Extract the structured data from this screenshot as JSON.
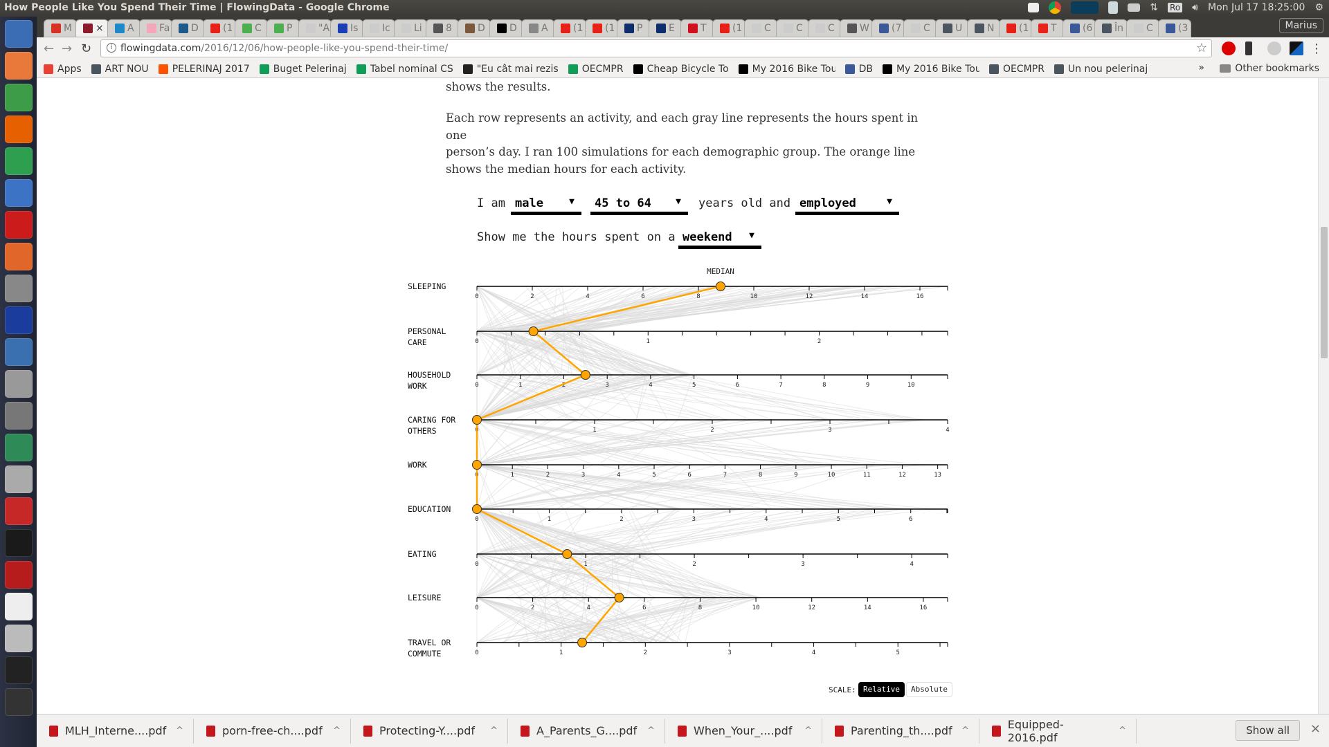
{
  "window": {
    "title": "How People Like You Spend Their Time | FlowingData - Google Chrome"
  },
  "system_tray": {
    "clock": "Mon Jul 17 18:25:00",
    "keyboard": "Ro",
    "user": "Marius",
    "icons": [
      "dropbox-icon",
      "chrome-icon",
      "system-monitor-icon",
      "notes-icon",
      "printer-icon",
      "network-icon",
      "keyboard-layout-icon",
      "volume-icon",
      "clock",
      "power-icon"
    ]
  },
  "tabs": [
    {
      "text": "M",
      "color": "#d93025"
    },
    {
      "text": "×",
      "color": "#8b1a2b",
      "active": true
    },
    {
      "text": "A",
      "color": "#1e88c8"
    },
    {
      "text": "Fa",
      "color": "#f2a8b8"
    },
    {
      "text": "D",
      "color": "#1d5a8a"
    },
    {
      "text": "(1",
      "color": "#e62117"
    },
    {
      "text": "C",
      "color": "#4caf50"
    },
    {
      "text": "P",
      "color": "#4caf50"
    },
    {
      "text": "\"A",
      "color": "#ccc"
    },
    {
      "text": "Is",
      "color": "#1a3fb5"
    },
    {
      "text": "Ic",
      "color": "#ccc"
    },
    {
      "text": "Li",
      "color": "#ccc"
    },
    {
      "text": "8",
      "color": "#555"
    },
    {
      "text": "D",
      "color": "#7a5a3a"
    },
    {
      "text": "D",
      "color": "#000"
    },
    {
      "text": "A",
      "color": "#888"
    },
    {
      "text": "(1",
      "color": "#e62117"
    },
    {
      "text": "(1",
      "color": "#e62117"
    },
    {
      "text": "P",
      "color": "#0c2e6b"
    },
    {
      "text": "E",
      "color": "#0c2e6b"
    },
    {
      "text": "T",
      "color": "#d0101c"
    },
    {
      "text": "(1",
      "color": "#e62117"
    },
    {
      "text": "C",
      "color": "#ccc"
    },
    {
      "text": "C",
      "color": "#ccc"
    },
    {
      "text": "C",
      "color": "#ccc"
    },
    {
      "text": "W",
      "color": "#555"
    },
    {
      "text": "(7",
      "color": "#3b5998"
    },
    {
      "text": "C",
      "color": "#ccc"
    },
    {
      "text": "U",
      "color": "#4a5560"
    },
    {
      "text": "N",
      "color": "#4a5560"
    },
    {
      "text": "(1",
      "color": "#e62117"
    },
    {
      "text": "T",
      "color": "#e8231a"
    },
    {
      "text": "(6",
      "color": "#3b5998"
    },
    {
      "text": "În",
      "color": "#4a5560"
    },
    {
      "text": "C",
      "color": "#ccc"
    },
    {
      "text": "(3",
      "color": "#3b5998"
    }
  ],
  "address_bar": {
    "domain": "flowingdata.com",
    "path": "/2016/12/06/how-people-like-you-spend-their-time/"
  },
  "bookmarks": [
    {
      "label": "Apps",
      "color": "#e94235"
    },
    {
      "label": "ART NOU",
      "color": "#4a5560"
    },
    {
      "label": "PELERINAJ 2017",
      "color": "#fc5200"
    },
    {
      "label": "Buget Pelerinaj",
      "color": "#0f9d58"
    },
    {
      "label": "Tabel nominal CS",
      "color": "#0f9d58"
    },
    {
      "label": "\"Eu cât mai rezis",
      "color": "#222"
    },
    {
      "label": "OECMPR",
      "color": "#0f9d58"
    },
    {
      "label": "Cheap Bicycle To",
      "color": "#000"
    },
    {
      "label": "My 2016 Bike Tou",
      "color": "#000"
    },
    {
      "label": "DB",
      "color": "#3b5998"
    },
    {
      "label": "My 2016 Bike Tou",
      "color": "#000"
    },
    {
      "label": "OECMPR",
      "color": "#4a5560"
    },
    {
      "label": "Un nou pelerinaj",
      "color": "#4a5560"
    }
  ],
  "bookmarks_more": "»",
  "other_bookmarks": "Other bookmarks",
  "launcher": [
    "#3b6db5",
    "#e8793a",
    "#3d9c48",
    "#e66000",
    "#2e9e4f",
    "#3c73c4",
    "#cc1b1b",
    "#e0662a",
    "#888",
    "#1a3c9c",
    "#3a6fb0",
    "#999",
    "#777",
    "#2e8b57",
    "#aaa",
    "#c62828",
    "#1a1a1a",
    "#b71c1c",
    "#eee",
    "#bbb",
    "#222",
    "#333"
  ],
  "article": {
    "p0": "shows the results.",
    "p1_lines": [
      "Each row represents an activity, and each gray line represents the hours spent in one",
      "person’s day. I ran 100 simulations for each demographic group. The orange line",
      "shows the median hours for each activity."
    ]
  },
  "controls": {
    "i_am": "I am",
    "sex": "male",
    "age": "45 to 64",
    "years_old_and": "years old and",
    "status": "employed",
    "show_me": "Show me the hours spent on a",
    "day": "weekend",
    "arrow": "▼"
  },
  "chart_data": {
    "type": "parallel-coordinates",
    "median_label": "MEDIAN",
    "median_color": "#ffa500",
    "line_color": "#d9d9d9",
    "rows": [
      {
        "label": [
          "SLEEPING"
        ],
        "max": 17.0,
        "ticks": [
          0,
          2,
          4,
          6,
          8,
          10,
          12,
          14,
          16
        ],
        "minor_step": 2,
        "median": 8.8
      },
      {
        "label": [
          "PERSONAL",
          "CARE"
        ],
        "max": 2.75,
        "ticks": [
          0,
          1,
          2
        ],
        "minor_step": 0.2,
        "median": 0.33
      },
      {
        "label": [
          "HOUSEHOLD",
          "WORK"
        ],
        "max": 10.84,
        "ticks": [
          0,
          1,
          2,
          3,
          4,
          5,
          6,
          7,
          8,
          9,
          10
        ],
        "minor_step": 1,
        "median": 2.5
      },
      {
        "label": [
          "CARING FOR",
          "OTHERS"
        ],
        "max": 4,
        "ticks": [
          0,
          1,
          2,
          3,
          4
        ],
        "minor_step": 0.5,
        "median": 0
      },
      {
        "label": [
          "WORK"
        ],
        "max": 13.28,
        "ticks": [
          0,
          1,
          2,
          3,
          4,
          5,
          6,
          7,
          8,
          9,
          10,
          11,
          12,
          13
        ],
        "minor_step": 1,
        "median": 0
      },
      {
        "label": [
          "EDUCATION"
        ],
        "max": 6.51,
        "ticks": [
          0,
          1,
          2,
          3,
          4,
          5,
          6
        ],
        "minor_step": 0.5,
        "median": 0
      },
      {
        "label": [
          "EATING"
        ],
        "max": 4.33,
        "ticks": [
          0,
          1,
          2,
          3,
          4
        ],
        "minor_step": 0.5,
        "median": 0.83
      },
      {
        "label": [
          "LEISURE"
        ],
        "max": 16.87,
        "ticks": [
          0,
          2,
          4,
          6,
          8,
          10,
          12,
          14,
          16
        ],
        "minor_step": 2,
        "median": 5.1
      },
      {
        "label": [
          "TRAVEL OR",
          "COMMUTE"
        ],
        "max": 5.59,
        "ticks": [
          0,
          1,
          2,
          3,
          4,
          5
        ],
        "minor_step": 0.5,
        "median": 1.25
      }
    ]
  },
  "scale": {
    "label": "SCALE:",
    "options": [
      "Relative",
      "Absolute"
    ],
    "selected": "Relative"
  },
  "downloads": [
    "MLH_Interne....pdf",
    "porn-free-ch....pdf",
    "Protecting-Y....pdf",
    "A_Parents_G....pdf",
    "When_Your_....pdf",
    "Parenting_th....pdf",
    "Equipped-2016.pdf"
  ],
  "downloads_show_all": "Show all",
  "downloads_close": "×"
}
